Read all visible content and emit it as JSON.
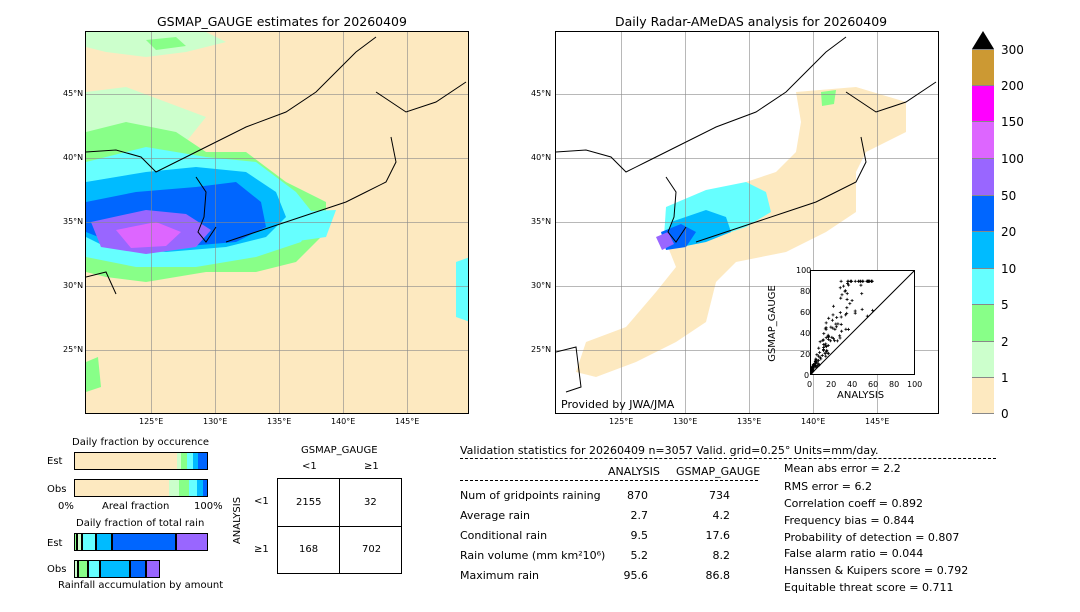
{
  "left_map": {
    "title": "GSMAP_GAUGE estimates for 20260409",
    "lat_labels": [
      "45°N",
      "40°N",
      "35°N",
      "30°N",
      "25°N"
    ],
    "lon_labels": [
      "125°E",
      "130°E",
      "135°E",
      "140°E",
      "145°E"
    ]
  },
  "right_map": {
    "title": "Daily Radar-AMeDAS analysis for 20260409",
    "lat_labels": [
      "45°N",
      "40°N",
      "35°N",
      "30°N",
      "25°N"
    ],
    "lon_labels": [
      "125°E",
      "130°E",
      "135°E",
      "140°E",
      "145°E"
    ],
    "credit": "Provided by JWA/JMA"
  },
  "colorbar": {
    "labels": [
      "300",
      "200",
      "150",
      "100",
      "50",
      "20",
      "10",
      "5",
      "2",
      "1",
      "0"
    ],
    "colors": [
      "#cc9933",
      "#ff00ff",
      "#dd66ff",
      "#9966ff",
      "#0066ff",
      "#00bbff",
      "#66ffff",
      "#88ff88",
      "#ccffcc",
      "#fde9c0"
    ]
  },
  "scatter": {
    "xlabel": "ANALYSIS",
    "ylabel": "GSMAP_GAUGE",
    "ticks": [
      "0",
      "20",
      "40",
      "60",
      "80",
      "100"
    ]
  },
  "occurrence": {
    "title": "Daily fraction by occurence",
    "row1": "Est",
    "row2": "Obs",
    "axis_left": "0%",
    "axis_mid": "Areal fraction",
    "axis_right": "100%"
  },
  "total_rain": {
    "title": "Daily fraction of total rain",
    "row1": "Est",
    "row2": "Obs",
    "footer": "Rainfall accumulation by amount"
  },
  "contingency": {
    "col_title": "GSMAP_GAUGE",
    "col_lt": "<1",
    "col_ge": "≥1",
    "row_title": "ANALYSIS",
    "row_lt": "<1",
    "row_ge": "≥1",
    "a": "2155",
    "b": "32",
    "c": "168",
    "d": "702"
  },
  "validation": {
    "header": "Validation statistics for 20260409  n=3057 Valid. grid=0.25° Units=mm/day.",
    "col1": "ANALYSIS",
    "col2": "GSMAP_GAUGE",
    "rows": [
      {
        "label": "Num of gridpoints raining",
        "a": "870",
        "g": "734"
      },
      {
        "label": "Average rain",
        "a": "2.7",
        "g": "4.2"
      },
      {
        "label": "Conditional rain",
        "a": "9.5",
        "g": "17.6"
      },
      {
        "label": "Rain volume (mm km²10⁶)",
        "a": "5.2",
        "g": "8.2"
      },
      {
        "label": "Maximum rain",
        "a": "95.6",
        "g": "86.8"
      }
    ],
    "scores": [
      "Mean abs error =    2.2",
      "RMS error =    6.2",
      "Correlation coeff =  0.892",
      "Frequency bias =  0.844",
      "Probability of detection =  0.807",
      "False alarm ratio =  0.044",
      "Hanssen & Kuipers score =  0.792",
      "Equitable threat score =  0.711"
    ]
  },
  "chart_data": {
    "type": "heatmap",
    "contingency_table": {
      "rows": [
        "<1",
        "≥1"
      ],
      "cols": [
        "<1",
        "≥1"
      ],
      "values": [
        [
          2155,
          32
        ],
        [
          168,
          702
        ]
      ]
    },
    "scatter_axis_range": [
      0,
      100
    ],
    "colorbar_levels": [
      0,
      1,
      2,
      5,
      10,
      20,
      50,
      100,
      150,
      200,
      300
    ]
  }
}
